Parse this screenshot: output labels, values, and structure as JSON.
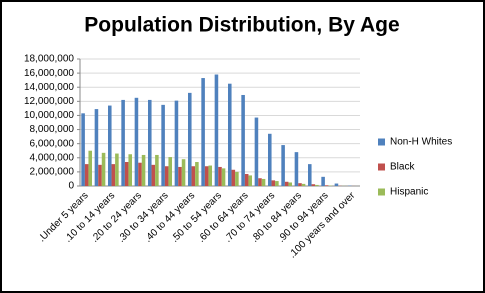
{
  "chart_data": {
    "type": "bar",
    "title": "Population Distribution, By Age",
    "categories": [
      ".Under 5 years",
      null,
      ".10 to 14 years",
      null,
      ".20 to 24 years",
      null,
      ".30 to 34 years",
      null,
      ".40 to 44 years",
      null,
      ".50 to 54 years",
      null,
      ".60 to 64 years",
      null,
      ".70 to 74 years",
      null,
      ".80 to 84 years",
      null,
      ".90 to 94 years",
      null,
      ".100 years and over"
    ],
    "series": [
      {
        "name": "Non-H Whites",
        "color": "#4f81bd",
        "values": [
          10300000,
          10900000,
          11400000,
          12200000,
          12500000,
          12200000,
          11500000,
          12100000,
          13200000,
          15300000,
          15800000,
          14500000,
          12900000,
          9700000,
          7400000,
          5800000,
          4800000,
          3100000,
          1300000,
          350000,
          50000
        ]
      },
      {
        "name": "Black",
        "color": "#c0504d",
        "values": [
          3100000,
          3000000,
          3100000,
          3400000,
          3300000,
          3000000,
          2800000,
          2700000,
          2800000,
          2800000,
          2700000,
          2300000,
          1700000,
          1100000,
          800000,
          600000,
          400000,
          250000,
          100000,
          30000,
          10000
        ]
      },
      {
        "name": "Hispanic",
        "color": "#9bbb59",
        "values": [
          5000000,
          4700000,
          4600000,
          4500000,
          4400000,
          4400000,
          4100000,
          3800000,
          3400000,
          2900000,
          2500000,
          2000000,
          1500000,
          1000000,
          700000,
          500000,
          300000,
          150000,
          60000,
          20000,
          5000
        ]
      }
    ],
    "ylim": [
      0,
      18000000
    ],
    "yticks": [
      0,
      {
        "value": 2000000,
        "label": "2,000,000"
      },
      {
        "value": 4000000,
        "label": "4,000,000"
      },
      {
        "value": 6000000,
        "label": "6,000,000"
      },
      {
        "value": 8000000,
        "label": "8,000,000"
      },
      {
        "value": 10000000,
        "label": "10,000,000"
      },
      {
        "value": 12000000,
        "label": "12,000,000"
      },
      {
        "value": 14000000,
        "label": "14,000,000"
      },
      {
        "value": 16000000,
        "label": "16,000,000"
      },
      {
        "value": 18000000,
        "label": "18,000,000"
      }
    ],
    "grid": true,
    "legend": "right"
  }
}
